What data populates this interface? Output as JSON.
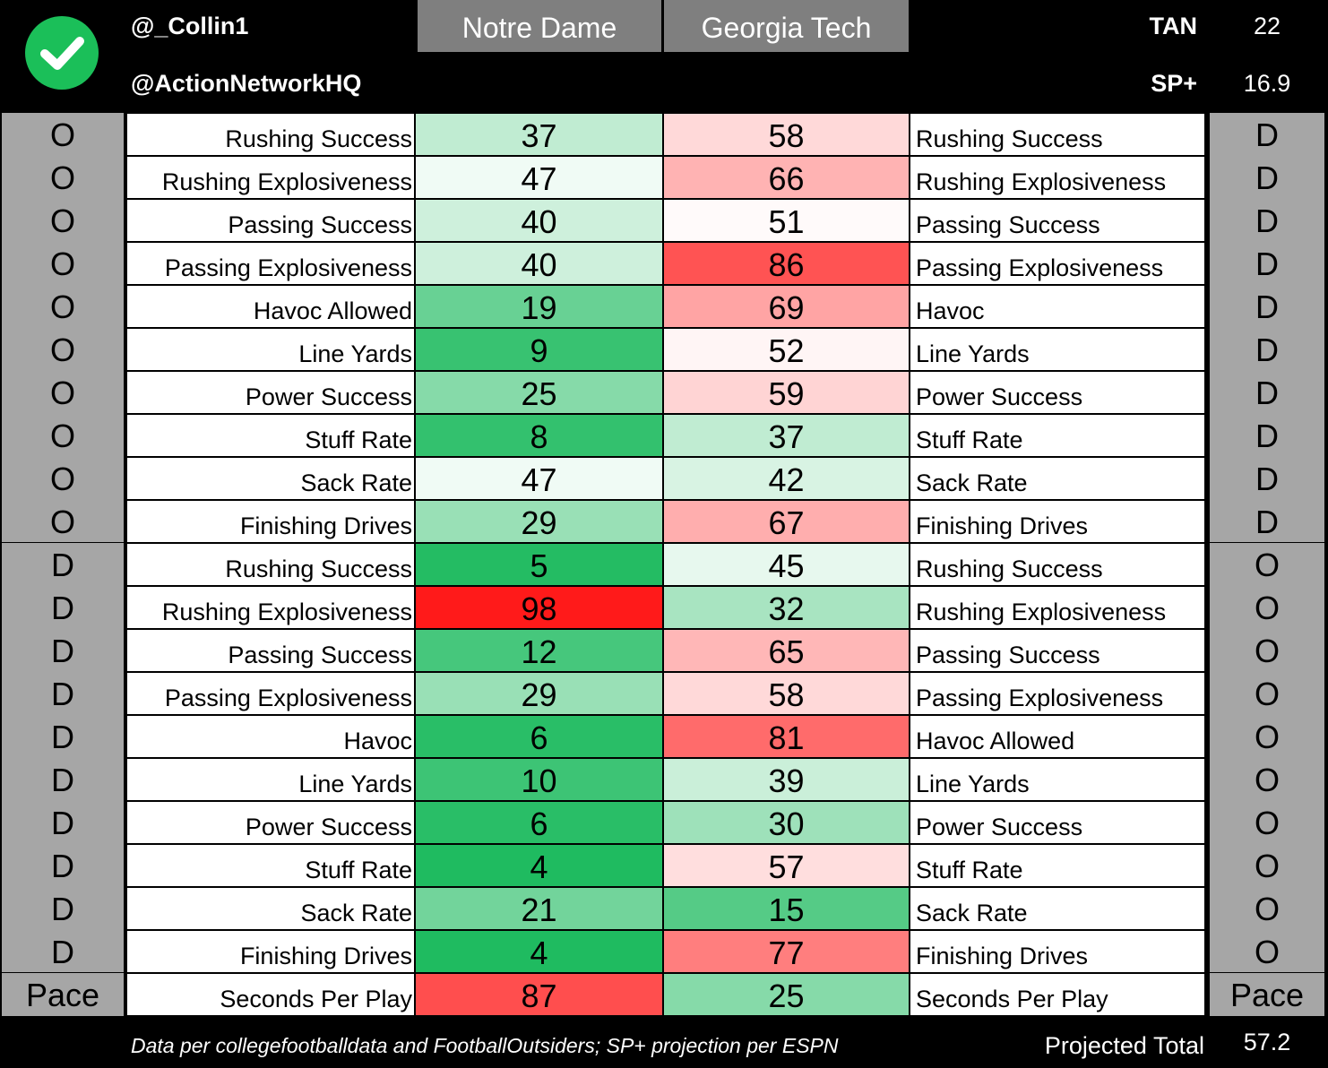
{
  "header": {
    "handle_primary": "@_Collin1",
    "handle_secondary": "@ActionNetworkHQ",
    "team_left": "Notre Dame",
    "team_right": "Georgia Tech",
    "metrics": [
      {
        "label": "TAN",
        "value": "22"
      },
      {
        "label": "SP+",
        "value": "16.9"
      }
    ],
    "check_icon_color": "#1bbf59"
  },
  "colors": {
    "good": "#0cb552",
    "neutral": "#ffffff",
    "bad": "#ff1a1a",
    "side_gray": "#a6a6a6",
    "header_gray": "#7f7f7f"
  },
  "rows": [
    {
      "left_side": "O",
      "left_label": "Rushing Success",
      "left_value": 37,
      "right_value": 58,
      "right_label": "Rushing Success",
      "right_side": "D"
    },
    {
      "left_side": "O",
      "left_label": "Rushing Explosiveness",
      "left_value": 47,
      "right_value": 66,
      "right_label": "Rushing Explosiveness",
      "right_side": "D"
    },
    {
      "left_side": "O",
      "left_label": "Passing Success",
      "left_value": 40,
      "right_value": 51,
      "right_label": "Passing Success",
      "right_side": "D"
    },
    {
      "left_side": "O",
      "left_label": "Passing Explosiveness",
      "left_value": 40,
      "right_value": 86,
      "right_label": "Passing Explosiveness",
      "right_side": "D"
    },
    {
      "left_side": "O",
      "left_label": "Havoc Allowed",
      "left_value": 19,
      "right_value": 69,
      "right_label": "Havoc",
      "right_side": "D"
    },
    {
      "left_side": "O",
      "left_label": "Line Yards",
      "left_value": 9,
      "right_value": 52,
      "right_label": "Line Yards",
      "right_side": "D"
    },
    {
      "left_side": "O",
      "left_label": "Power Success",
      "left_value": 25,
      "right_value": 59,
      "right_label": "Power Success",
      "right_side": "D"
    },
    {
      "left_side": "O",
      "left_label": "Stuff Rate",
      "left_value": 8,
      "right_value": 37,
      "right_label": "Stuff Rate",
      "right_side": "D"
    },
    {
      "left_side": "O",
      "left_label": "Sack Rate",
      "left_value": 47,
      "right_value": 42,
      "right_label": "Sack Rate",
      "right_side": "D"
    },
    {
      "left_side": "O",
      "left_label": "Finishing Drives",
      "left_value": 29,
      "right_value": 67,
      "right_label": "Finishing Drives",
      "right_side": "D"
    },
    {
      "left_side": "D",
      "left_label": "Rushing Success",
      "left_value": 5,
      "right_value": 45,
      "right_label": "Rushing Success",
      "right_side": "O"
    },
    {
      "left_side": "D",
      "left_label": "Rushing Explosiveness",
      "left_value": 98,
      "right_value": 32,
      "right_label": "Rushing Explosiveness",
      "right_side": "O"
    },
    {
      "left_side": "D",
      "left_label": "Passing Success",
      "left_value": 12,
      "right_value": 65,
      "right_label": "Passing Success",
      "right_side": "O"
    },
    {
      "left_side": "D",
      "left_label": "Passing Explosiveness",
      "left_value": 29,
      "right_value": 58,
      "right_label": "Passing Explosiveness",
      "right_side": "O"
    },
    {
      "left_side": "D",
      "left_label": "Havoc",
      "left_value": 6,
      "right_value": 81,
      "right_label": "Havoc Allowed",
      "right_side": "O"
    },
    {
      "left_side": "D",
      "left_label": "Line Yards",
      "left_value": 10,
      "right_value": 39,
      "right_label": "Line Yards",
      "right_side": "O"
    },
    {
      "left_side": "D",
      "left_label": "Power Success",
      "left_value": 6,
      "right_value": 30,
      "right_label": "Power Success",
      "right_side": "O"
    },
    {
      "left_side": "D",
      "left_label": "Stuff Rate",
      "left_value": 4,
      "right_value": 57,
      "right_label": "Stuff Rate",
      "right_side": "O"
    },
    {
      "left_side": "D",
      "left_label": "Sack Rate",
      "left_value": 21,
      "right_value": 15,
      "right_label": "Sack Rate",
      "right_side": "O"
    },
    {
      "left_side": "D",
      "left_label": "Finishing Drives",
      "left_value": 4,
      "right_value": 77,
      "right_label": "Finishing Drives",
      "right_side": "O"
    },
    {
      "left_side": "Pace",
      "left_label": "Seconds Per Play",
      "left_value": 87,
      "right_value": 25,
      "right_label": "Seconds Per Play",
      "right_side": "Pace"
    }
  ],
  "footer": {
    "note": "Data per collegefootballdata and FootballOutsiders; SP+ projection per ESPN",
    "total_label": "Projected Total",
    "total_value": "57.2"
  }
}
